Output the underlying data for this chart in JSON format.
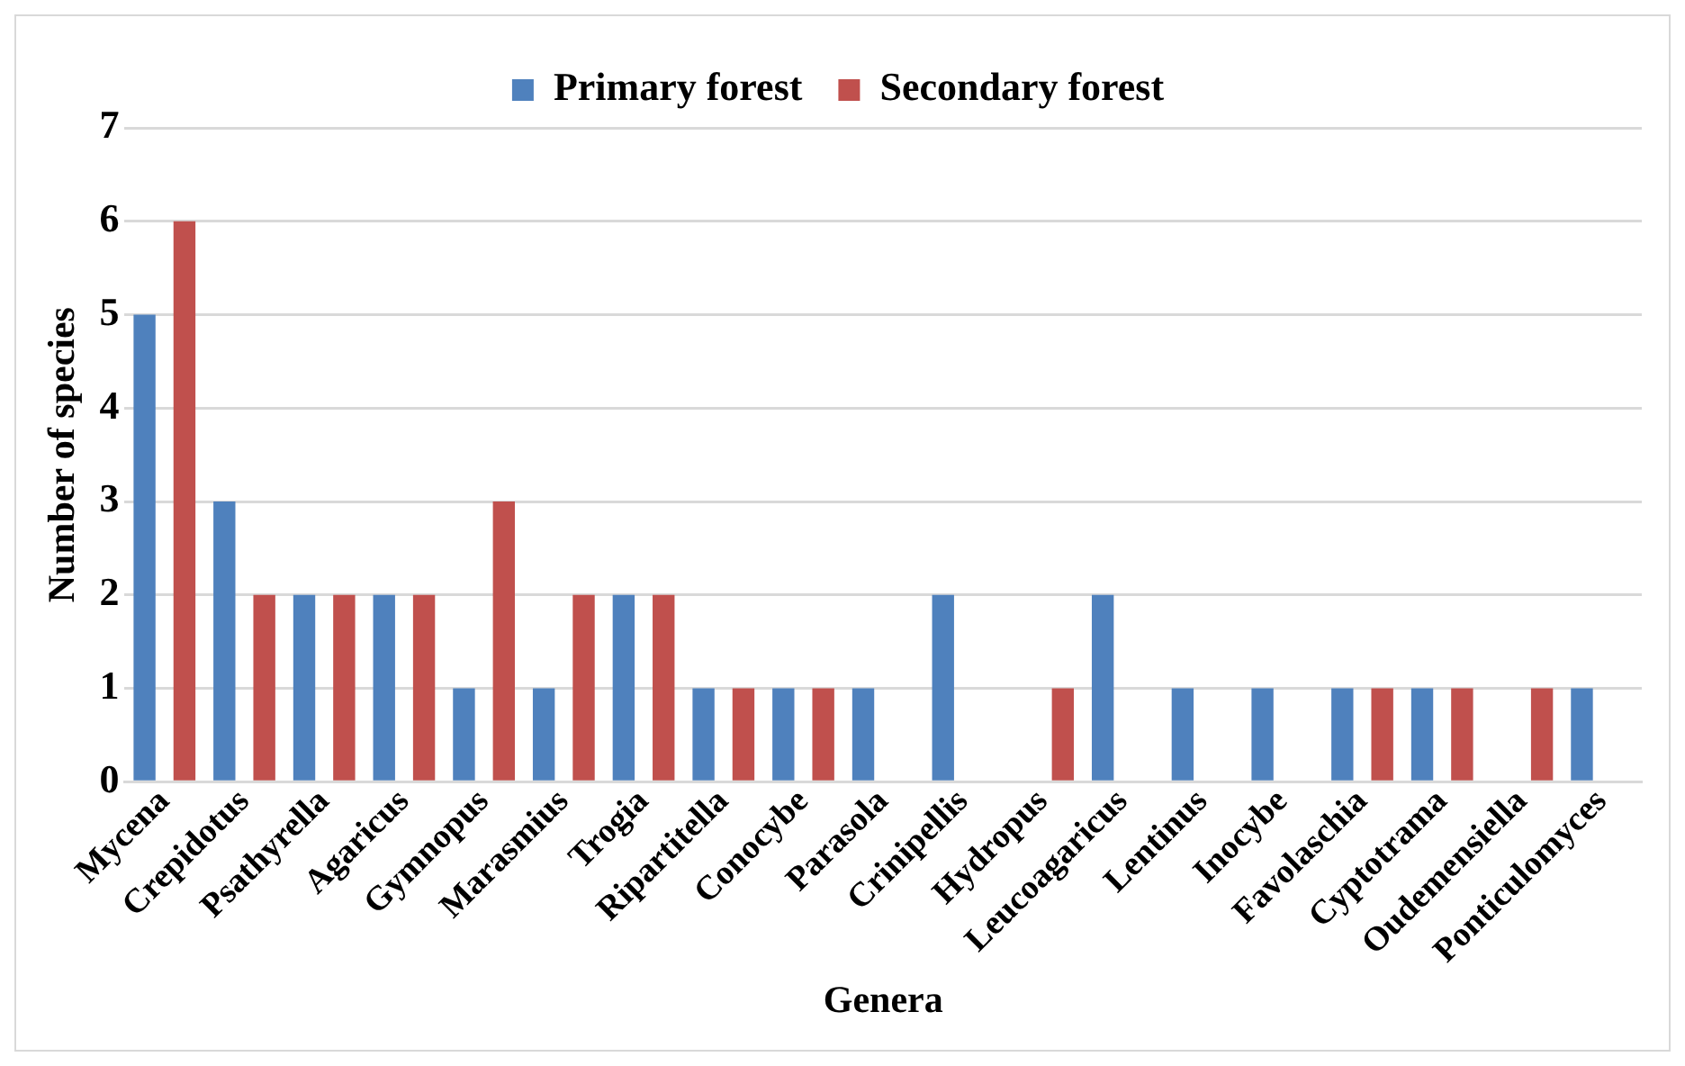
{
  "chart_data": {
    "type": "bar",
    "xlabel": "Genera",
    "ylabel": "Number of species",
    "categories": [
      "Mycena",
      "Crepidotus",
      "Psathyrella",
      "Agaricus",
      "Gymnopus",
      "Marasmius",
      "Trogia",
      "Ripartitella",
      "Conocybe",
      "Parasola",
      "Crinipellis",
      "Hydropus",
      "Leucoagaricus",
      "Lentinus",
      "Inocybe",
      "Favolaschia",
      "Cyptotrama",
      "Oudemensiella",
      "Ponticulomyces"
    ],
    "series": [
      {
        "name": "Primary forest",
        "color": "#4f81bd",
        "values": [
          5,
          3,
          2,
          2,
          1,
          1,
          2,
          1,
          1,
          1,
          2,
          0,
          2,
          1,
          1,
          1,
          1,
          0,
          1
        ]
      },
      {
        "name": "Secondary forest",
        "color": "#c0504d",
        "values": [
          6,
          2,
          2,
          2,
          3,
          2,
          2,
          1,
          1,
          0,
          0,
          1,
          0,
          0,
          0,
          1,
          1,
          1,
          0
        ]
      }
    ],
    "ylim": [
      0,
      7
    ],
    "yticks": [
      0,
      1,
      2,
      3,
      4,
      5,
      6,
      7
    ],
    "grid": "y",
    "legend": "top"
  }
}
